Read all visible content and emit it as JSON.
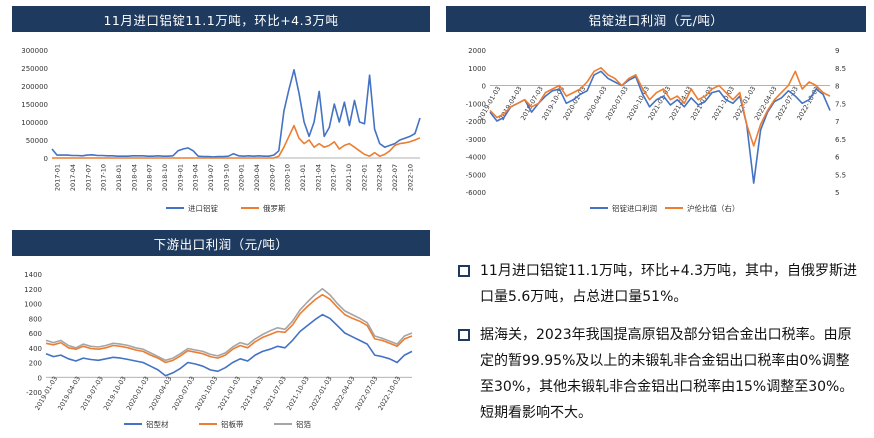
{
  "panels": {
    "import": {
      "title": "11月进口铝锭11.1万吨，环比+4.3万吨"
    },
    "profit": {
      "title": "铝锭进口利润（元/吨）"
    },
    "export": {
      "title": "下游出口利润（元/吨）"
    }
  },
  "bullets": [
    "11月进口铝锭11.1万吨，环比+4.3万吨，其中，自俄罗斯进口量5.6万吨，占总进口量51%。",
    "据海关，2023年我国提高原铝及部分铝合金出口税率。由原定的暂99.95%及以上的未锻轧非合金铝出口税率由0%调整至30%，其他未锻轧非合金铝出口税率由15%调整至30%。短期看影响不大。"
  ],
  "colors": {
    "blue": "#4472c4",
    "orange": "#ed7d31",
    "gray": "#a5a5a5",
    "title_bg": "#1f3a5f"
  },
  "chart_data": [
    {
      "type": "line",
      "title": "11月进口铝锭11.1万吨，环比+4.3万吨",
      "ylim": [
        0,
        300000
      ],
      "yticks": [
        "300000",
        "250000",
        "200000",
        "150000",
        "100000",
        "50000",
        "0"
      ],
      "xticks": [
        "2017-01",
        "2017-04",
        "2017-07",
        "2017-10",
        "2018-01",
        "2018-04",
        "2018-07",
        "2018-10",
        "2019-01",
        "2019-04",
        "2019-07",
        "2019-10",
        "2020-01",
        "2020-04",
        "2020-07",
        "2020-10",
        "2021-01",
        "2021-04",
        "2021-07",
        "2021-10",
        "2022-01",
        "2022-04",
        "2022-07",
        "2022-10"
      ],
      "series": [
        {
          "name": "进口铝锭",
          "color": "#4472c4",
          "values": [
            25000,
            8000,
            8000,
            8000,
            7000,
            7000,
            6000,
            8000,
            9000,
            7000,
            7000,
            6000,
            6000,
            5000,
            5000,
            5000,
            6000,
            6000,
            6000,
            5000,
            5000,
            6000,
            5000,
            5000,
            6000,
            20000,
            25000,
            28000,
            20000,
            5000,
            4000,
            4000,
            3000,
            4000,
            4000,
            5000,
            12000,
            6000,
            5000,
            6000,
            5000,
            6000,
            5000,
            5000,
            8000,
            20000,
            130000,
            190000,
            245000,
            180000,
            100000,
            60000,
            100000,
            185000,
            60000,
            85000,
            150000,
            100000,
            155000,
            90000,
            160000,
            100000,
            95000,
            230000,
            80000,
            40000,
            30000,
            35000,
            40000,
            50000,
            55000,
            60000,
            68000,
            111000
          ]
        },
        {
          "name": "俄罗斯",
          "color": "#ed7d31",
          "values": [
            0,
            0,
            0,
            0,
            0,
            0,
            0,
            0,
            0,
            0,
            0,
            0,
            0,
            0,
            0,
            0,
            0,
            0,
            0,
            0,
            0,
            0,
            0,
            0,
            0,
            0,
            0,
            0,
            0,
            0,
            0,
            0,
            0,
            0,
            0,
            0,
            0,
            0,
            0,
            0,
            0,
            0,
            0,
            0,
            0,
            5000,
            30000,
            60000,
            90000,
            55000,
            40000,
            50000,
            30000,
            40000,
            30000,
            35000,
            45000,
            25000,
            35000,
            40000,
            30000,
            20000,
            10000,
            5000,
            15000,
            5000,
            10000,
            20000,
            35000,
            40000,
            42000,
            45000,
            50000,
            56000
          ]
        }
      ]
    },
    {
      "type": "line",
      "title": "铝锭进口利润（元/吨）",
      "ylim": [
        -6000,
        2000
      ],
      "y2lim": [
        5,
        9
      ],
      "yticks": [
        "2000",
        "1000",
        "0",
        "-1000",
        "-2000",
        "-3000",
        "-4000",
        "-5000",
        "-6000"
      ],
      "y2ticks": [
        "9",
        "8.5",
        "8",
        "7.5",
        "7",
        "6.5",
        "6",
        "5.5",
        "5"
      ],
      "xticks": [
        "2019-01-03",
        "2019-04-03",
        "2019-07-03",
        "2019-10-03",
        "2020-01-03",
        "2020-04-03",
        "2020-07-03",
        "2020-10-03",
        "2021-01-03",
        "2021-04-03",
        "2021-07-03",
        "2021-10-03",
        "2022-01-03",
        "2022-04-03",
        "2022-07-03",
        "2022-10-03"
      ],
      "series": [
        {
          "name": "铝锭进口利润",
          "color": "#4472c4",
          "axis": "left",
          "values": [
            -1500,
            -2000,
            -1800,
            -1200,
            -1000,
            -800,
            -1500,
            -1000,
            -600,
            -300,
            -200,
            -1000,
            -800,
            -500,
            -300,
            600,
            800,
            400,
            200,
            0,
            300,
            500,
            -500,
            -1200,
            -800,
            -600,
            -1100,
            -800,
            -1200,
            -700,
            -1100,
            -900,
            -400,
            -300,
            -800,
            -1000,
            -600,
            -2200,
            -5500,
            -2500,
            -1500,
            -900,
            -700,
            -300,
            -600,
            -1000,
            -800,
            -200,
            -500,
            -1400
          ]
        },
        {
          "name": "沪伦比值（右）",
          "color": "#ed7d31",
          "axis": "right",
          "values": [
            7.3,
            7.1,
            7.2,
            7.4,
            7.5,
            7.6,
            7.4,
            7.5,
            7.8,
            7.9,
            8.0,
            7.7,
            7.8,
            7.9,
            8.1,
            8.4,
            8.5,
            8.3,
            8.2,
            8.0,
            8.2,
            8.3,
            7.9,
            7.6,
            7.8,
            7.9,
            7.6,
            7.7,
            7.5,
            7.9,
            7.6,
            7.7,
            7.9,
            8.0,
            7.8,
            7.6,
            7.8,
            6.9,
            6.3,
            6.9,
            7.3,
            7.6,
            7.8,
            8.0,
            8.4,
            7.9,
            8.1,
            8.0,
            7.8,
            7.7
          ]
        }
      ]
    },
    {
      "type": "line",
      "title": "下游出口利润（元/吨）",
      "ylim": [
        -200,
        1400
      ],
      "yticks": [
        "1400",
        "1200",
        "1000",
        "800",
        "600",
        "400",
        "200",
        "0",
        "-200"
      ],
      "xticks": [
        "2019-01-03",
        "2019-04-03",
        "2019-07-03",
        "2019-10-03",
        "2020-01-03",
        "2020-04-03",
        "2020-07-03",
        "2020-10-03",
        "2021-01-03",
        "2021-04-03",
        "2021-07-03",
        "2021-10-03",
        "2022-01-03",
        "2022-04-03",
        "2022-07-03",
        "2022-10-03"
      ],
      "series": [
        {
          "name": "铝型材",
          "color": "#4472c4",
          "values": [
            320,
            280,
            300,
            250,
            220,
            260,
            240,
            230,
            250,
            270,
            260,
            240,
            220,
            200,
            150,
            100,
            20,
            60,
            120,
            200,
            180,
            150,
            100,
            80,
            130,
            200,
            250,
            220,
            300,
            350,
            380,
            420,
            400,
            500,
            620,
            700,
            780,
            850,
            800,
            700,
            600,
            550,
            500,
            450,
            300,
            280,
            250,
            200,
            300,
            350
          ]
        },
        {
          "name": "铝板带",
          "color": "#ed7d31",
          "values": [
            460,
            440,
            470,
            400,
            380,
            420,
            390,
            380,
            400,
            430,
            420,
            400,
            370,
            350,
            300,
            260,
            200,
            230,
            290,
            360,
            340,
            320,
            280,
            260,
            300,
            380,
            430,
            400,
            480,
            540,
            580,
            620,
            610,
            710,
            860,
            960,
            1050,
            1120,
            1060,
            950,
            850,
            800,
            760,
            700,
            520,
            500,
            460,
            420,
            520,
            560
          ]
        },
        {
          "name": "铝箔",
          "color": "#a5a5a5",
          "values": [
            500,
            470,
            500,
            430,
            400,
            450,
            420,
            410,
            430,
            460,
            450,
            430,
            400,
            380,
            330,
            280,
            230,
            260,
            320,
            390,
            370,
            350,
            310,
            290,
            330,
            410,
            470,
            440,
            520,
            580,
            630,
            670,
            650,
            760,
            910,
            1020,
            1120,
            1200,
            1120,
            1000,
            900,
            850,
            800,
            740,
            560,
            530,
            490,
            450,
            560,
            600
          ]
        }
      ]
    }
  ]
}
